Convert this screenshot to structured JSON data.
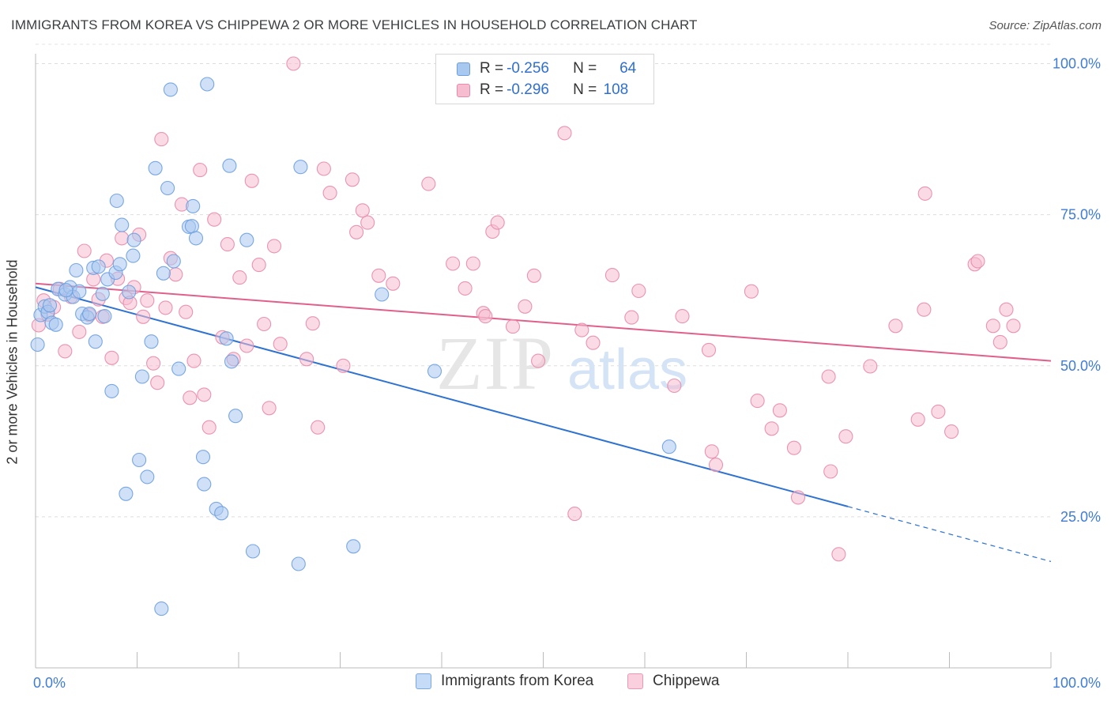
{
  "title": "IMMIGRANTS FROM KOREA VS CHIPPEWA 2 OR MORE VEHICLES IN HOUSEHOLD CORRELATION CHART",
  "source": "Source: ZipAtlas.com",
  "watermark": {
    "zip": "ZIP",
    "atlas": "atlas"
  },
  "legend": {
    "rows": [
      {
        "r_label": "R = ",
        "r_value": "-0.256",
        "n_label": "N = ",
        "n_value": "64",
        "color": "#a9c8f0",
        "border": "#6c9fe0"
      },
      {
        "r_label": "R = ",
        "r_value": "-0.296",
        "n_label": "N = ",
        "n_value": "108",
        "color": "#f6bcd0",
        "border": "#e88aa8"
      }
    ]
  },
  "bottom_legend": {
    "series1": "Immigrants from Korea",
    "series2": "Chippewa"
  },
  "chart_data": {
    "type": "scatter",
    "title": "IMMIGRANTS FROM KOREA VS CHIPPEWA 2 OR MORE VEHICLES IN HOUSEHOLD CORRELATION CHART",
    "xlabel": "",
    "ylabel": "2 or more Vehicles in Household",
    "xlim": [
      0,
      100
    ],
    "ylim": [
      0,
      105
    ],
    "x_tick_labels": [
      "0.0%",
      "100.0%"
    ],
    "y_tick_labels": [
      "25.0%",
      "50.0%",
      "75.0%",
      "100.0%"
    ],
    "y_ticks": [
      25,
      50,
      75,
      100
    ],
    "grid": true,
    "legend_position": "top-center",
    "series": [
      {
        "name": "Immigrants from Korea",
        "color": "#6c9fe0",
        "fill": "#a9c8f0",
        "line_color": "#2e72d2",
        "trend": {
          "x": [
            0,
            80
          ],
          "y": [
            63.0,
            26.7
          ],
          "dashed_to": [
            100,
            17.6
          ]
        },
        "points": [
          [
            0.2,
            53.5
          ],
          [
            0.5,
            58.4
          ],
          [
            0.9,
            59.8
          ],
          [
            1.2,
            58.9
          ],
          [
            1.6,
            57.1
          ],
          [
            2.0,
            56.8
          ],
          [
            2.2,
            62.7
          ],
          [
            2.9,
            61.8
          ],
          [
            3.4,
            63.0
          ],
          [
            3.7,
            61.4
          ],
          [
            4.0,
            65.8
          ],
          [
            4.3,
            62.3
          ],
          [
            4.6,
            58.6
          ],
          [
            5.1,
            58.0
          ],
          [
            5.3,
            58.6
          ],
          [
            5.7,
            66.2
          ],
          [
            5.9,
            54.0
          ],
          [
            6.2,
            66.4
          ],
          [
            6.6,
            61.9
          ],
          [
            7.1,
            64.3
          ],
          [
            7.5,
            45.8
          ],
          [
            7.9,
            65.4
          ],
          [
            8.0,
            77.3
          ],
          [
            8.3,
            66.8
          ],
          [
            8.5,
            73.3
          ],
          [
            8.9,
            28.8
          ],
          [
            9.2,
            62.2
          ],
          [
            9.6,
            68.2
          ],
          [
            9.7,
            70.8
          ],
          [
            10.2,
            34.4
          ],
          [
            10.5,
            48.2
          ],
          [
            11.0,
            31.6
          ],
          [
            11.4,
            54.0
          ],
          [
            11.8,
            82.7
          ],
          [
            12.4,
            9.8
          ],
          [
            12.6,
            65.3
          ],
          [
            13.0,
            79.4
          ],
          [
            13.3,
            95.7
          ],
          [
            13.6,
            67.3
          ],
          [
            14.1,
            49.5
          ],
          [
            15.1,
            73.0
          ],
          [
            15.4,
            73.1
          ],
          [
            15.5,
            76.4
          ],
          [
            15.8,
            71.1
          ],
          [
            16.5,
            34.9
          ],
          [
            16.6,
            30.4
          ],
          [
            16.9,
            96.6
          ],
          [
            17.8,
            26.3
          ],
          [
            18.3,
            25.6
          ],
          [
            18.8,
            54.5
          ],
          [
            19.1,
            83.1
          ],
          [
            19.3,
            50.7
          ],
          [
            19.7,
            41.7
          ],
          [
            20.8,
            70.8
          ],
          [
            21.4,
            19.3
          ],
          [
            25.9,
            17.2
          ],
          [
            26.1,
            82.9
          ],
          [
            31.3,
            20.1
          ],
          [
            34.1,
            61.8
          ],
          [
            39.3,
            49.1
          ],
          [
            62.4,
            36.6
          ],
          [
            3.0,
            62.5
          ],
          [
            6.8,
            58.2
          ],
          [
            1.4,
            60.0
          ]
        ]
      },
      {
        "name": "Chippewa",
        "color": "#e88aa8",
        "fill": "#f6bcd0",
        "line_color": "#e0608b",
        "trend": {
          "x": [
            0,
            100
          ],
          "y": [
            63.6,
            50.8
          ]
        },
        "points": [
          [
            0.3,
            56.7
          ],
          [
            0.8,
            60.8
          ],
          [
            1.2,
            58.5
          ],
          [
            1.8,
            59.7
          ],
          [
            2.4,
            62.7
          ],
          [
            2.9,
            52.4
          ],
          [
            3.5,
            61.4
          ],
          [
            4.3,
            55.6
          ],
          [
            4.8,
            69.0
          ],
          [
            5.3,
            58.4
          ],
          [
            5.7,
            64.3
          ],
          [
            6.2,
            61.0
          ],
          [
            6.6,
            58.1
          ],
          [
            7.0,
            67.4
          ],
          [
            7.5,
            51.3
          ],
          [
            8.1,
            64.4
          ],
          [
            8.5,
            71.1
          ],
          [
            8.9,
            61.2
          ],
          [
            9.3,
            60.4
          ],
          [
            9.7,
            63.0
          ],
          [
            10.2,
            71.7
          ],
          [
            10.6,
            58.1
          ],
          [
            11.0,
            60.8
          ],
          [
            11.6,
            50.4
          ],
          [
            12.0,
            47.2
          ],
          [
            12.4,
            87.5
          ],
          [
            12.8,
            59.6
          ],
          [
            13.3,
            67.8
          ],
          [
            13.8,
            65.1
          ],
          [
            14.4,
            76.7
          ],
          [
            14.8,
            58.9
          ],
          [
            15.2,
            44.7
          ],
          [
            15.6,
            50.8
          ],
          [
            16.2,
            82.4
          ],
          [
            16.6,
            45.2
          ],
          [
            17.1,
            39.8
          ],
          [
            17.6,
            74.2
          ],
          [
            18.4,
            54.7
          ],
          [
            18.9,
            70.1
          ],
          [
            19.5,
            51.1
          ],
          [
            20.1,
            64.6
          ],
          [
            20.8,
            53.3
          ],
          [
            21.3,
            80.6
          ],
          [
            22.0,
            66.7
          ],
          [
            22.5,
            56.9
          ],
          [
            23.0,
            43.0
          ],
          [
            23.5,
            69.8
          ],
          [
            24.1,
            53.6
          ],
          [
            25.4,
            100.0
          ],
          [
            26.7,
            51.1
          ],
          [
            27.3,
            57.0
          ],
          [
            27.8,
            39.8
          ],
          [
            28.4,
            82.6
          ],
          [
            29.0,
            78.6
          ],
          [
            30.3,
            50.0
          ],
          [
            31.2,
            80.8
          ],
          [
            31.6,
            72.1
          ],
          [
            32.2,
            75.7
          ],
          [
            32.7,
            73.7
          ],
          [
            33.8,
            64.9
          ],
          [
            35.2,
            63.6
          ],
          [
            38.7,
            80.1
          ],
          [
            41.1,
            66.9
          ],
          [
            42.3,
            62.8
          ],
          [
            43.1,
            66.9
          ],
          [
            44.1,
            58.7
          ],
          [
            44.3,
            58.2
          ],
          [
            45.0,
            72.2
          ],
          [
            45.5,
            73.7
          ],
          [
            47.0,
            56.5
          ],
          [
            48.2,
            59.8
          ],
          [
            49.1,
            64.9
          ],
          [
            49.5,
            50.8
          ],
          [
            52.1,
            88.5
          ],
          [
            53.1,
            25.5
          ],
          [
            53.8,
            55.9
          ],
          [
            54.9,
            53.8
          ],
          [
            56.8,
            65.0
          ],
          [
            58.7,
            58.0
          ],
          [
            59.4,
            62.4
          ],
          [
            62.9,
            46.7
          ],
          [
            63.7,
            58.2
          ],
          [
            66.3,
            52.6
          ],
          [
            66.6,
            35.8
          ],
          [
            67.0,
            33.6
          ],
          [
            70.5,
            62.3
          ],
          [
            71.1,
            44.2
          ],
          [
            72.5,
            39.6
          ],
          [
            73.3,
            42.6
          ],
          [
            74.7,
            36.4
          ],
          [
            75.1,
            28.2
          ],
          [
            78.1,
            48.2
          ],
          [
            78.3,
            32.5
          ],
          [
            79.1,
            18.8
          ],
          [
            79.8,
            38.3
          ],
          [
            82.2,
            49.9
          ],
          [
            84.7,
            56.6
          ],
          [
            86.9,
            41.1
          ],
          [
            87.5,
            59.3
          ],
          [
            87.6,
            78.5
          ],
          [
            88.9,
            42.4
          ],
          [
            90.2,
            39.1
          ],
          [
            92.5,
            66.8
          ],
          [
            92.8,
            67.3
          ],
          [
            94.3,
            56.6
          ],
          [
            95.0,
            53.9
          ],
          [
            95.6,
            59.3
          ],
          [
            96.3,
            56.6
          ]
        ]
      }
    ]
  }
}
